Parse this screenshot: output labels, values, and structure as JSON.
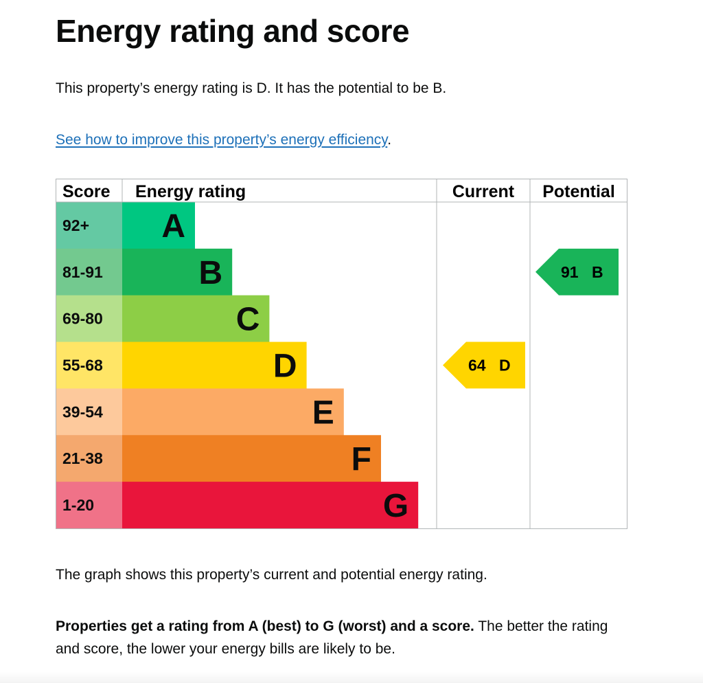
{
  "heading": "Energy rating and score",
  "intro": "This property’s energy rating is D. It has the potential to be B.",
  "improve_link": "See how to improve this property’s energy efficiency",
  "improve_link_suffix": ".",
  "table": {
    "headers": {
      "score": "Score",
      "rating": "Energy rating",
      "current": "Current",
      "potential": "Potential"
    },
    "bands": [
      {
        "score": "92+",
        "letter": "A",
        "color": "#00c781",
        "light": "#64c9a3"
      },
      {
        "score": "81-91",
        "letter": "B",
        "color": "#19b459",
        "light": "#73c98f"
      },
      {
        "score": "69-80",
        "letter": "C",
        "color": "#8dce46",
        "light": "#b5e08c"
      },
      {
        "score": "55-68",
        "letter": "D",
        "color": "#ffd500",
        "light": "#ffe566"
      },
      {
        "score": "39-54",
        "letter": "E",
        "color": "#fcaa65",
        "light": "#fdc99c"
      },
      {
        "score": "21-38",
        "letter": "F",
        "color": "#ef8023",
        "light": "#f4a86e"
      },
      {
        "score": "1-20",
        "letter": "G",
        "color": "#e9153b",
        "light": "#f07288"
      }
    ],
    "current": {
      "score": "64",
      "letter": "D",
      "band_index": 3,
      "color": "#ffd500"
    },
    "potential": {
      "score": "91",
      "letter": "B",
      "band_index": 1,
      "color": "#19b459"
    }
  },
  "graph_note": "The graph shows this property’s current and potential energy rating.",
  "rating_info_bold": "Properties get a rating from A (best) to G (worst) and a score.",
  "rating_info_rest": " The better the rating and score, the lower your energy bills are likely to be."
}
